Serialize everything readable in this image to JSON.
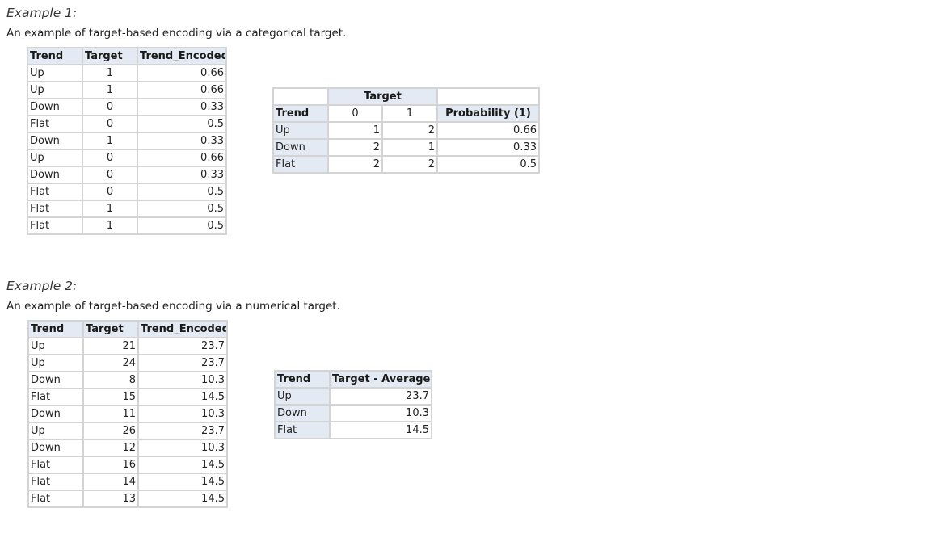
{
  "example1": {
    "title": "Example 1:",
    "description": "An example of target-based encoding via a categorical target.",
    "data_table": {
      "headers": [
        "Trend",
        "Target",
        "Trend_Encoded"
      ],
      "rows": [
        [
          "Up",
          "1",
          "0.66"
        ],
        [
          "Up",
          "1",
          "0.66"
        ],
        [
          "Down",
          "0",
          "0.33"
        ],
        [
          "Flat",
          "0",
          "0.5"
        ],
        [
          "Down",
          "1",
          "0.33"
        ],
        [
          "Up",
          "0",
          "0.66"
        ],
        [
          "Down",
          "0",
          "0.33"
        ],
        [
          "Flat",
          "0",
          "0.5"
        ],
        [
          "Flat",
          "1",
          "0.5"
        ],
        [
          "Flat",
          "1",
          "0.5"
        ]
      ]
    },
    "summary_table": {
      "group_header": "Target",
      "row_header": "Trend",
      "col_0": "0",
      "col_1": "1",
      "prob_header": "Probability (1)",
      "rows": [
        [
          "Up",
          "1",
          "2",
          "0.66"
        ],
        [
          "Down",
          "2",
          "1",
          "0.33"
        ],
        [
          "Flat",
          "2",
          "2",
          "0.5"
        ]
      ]
    }
  },
  "example2": {
    "title": "Example 2:",
    "description": "An example of target-based encoding via a numerical target.",
    "data_table": {
      "headers": [
        "Trend",
        "Target",
        "Trend_Encoded"
      ],
      "rows": [
        [
          "Up",
          "21",
          "23.7"
        ],
        [
          "Up",
          "24",
          "23.7"
        ],
        [
          "Down",
          "8",
          "10.3"
        ],
        [
          "Flat",
          "15",
          "14.5"
        ],
        [
          "Down",
          "11",
          "10.3"
        ],
        [
          "Up",
          "26",
          "23.7"
        ],
        [
          "Down",
          "12",
          "10.3"
        ],
        [
          "Flat",
          "16",
          "14.5"
        ],
        [
          "Flat",
          "14",
          "14.5"
        ],
        [
          "Flat",
          "13",
          "14.5"
        ]
      ]
    },
    "summary_table": {
      "headers": [
        "Trend",
        "Target - Average"
      ],
      "rows": [
        [
          "Up",
          "23.7"
        ],
        [
          "Down",
          "10.3"
        ],
        [
          "Flat",
          "14.5"
        ]
      ]
    }
  }
}
